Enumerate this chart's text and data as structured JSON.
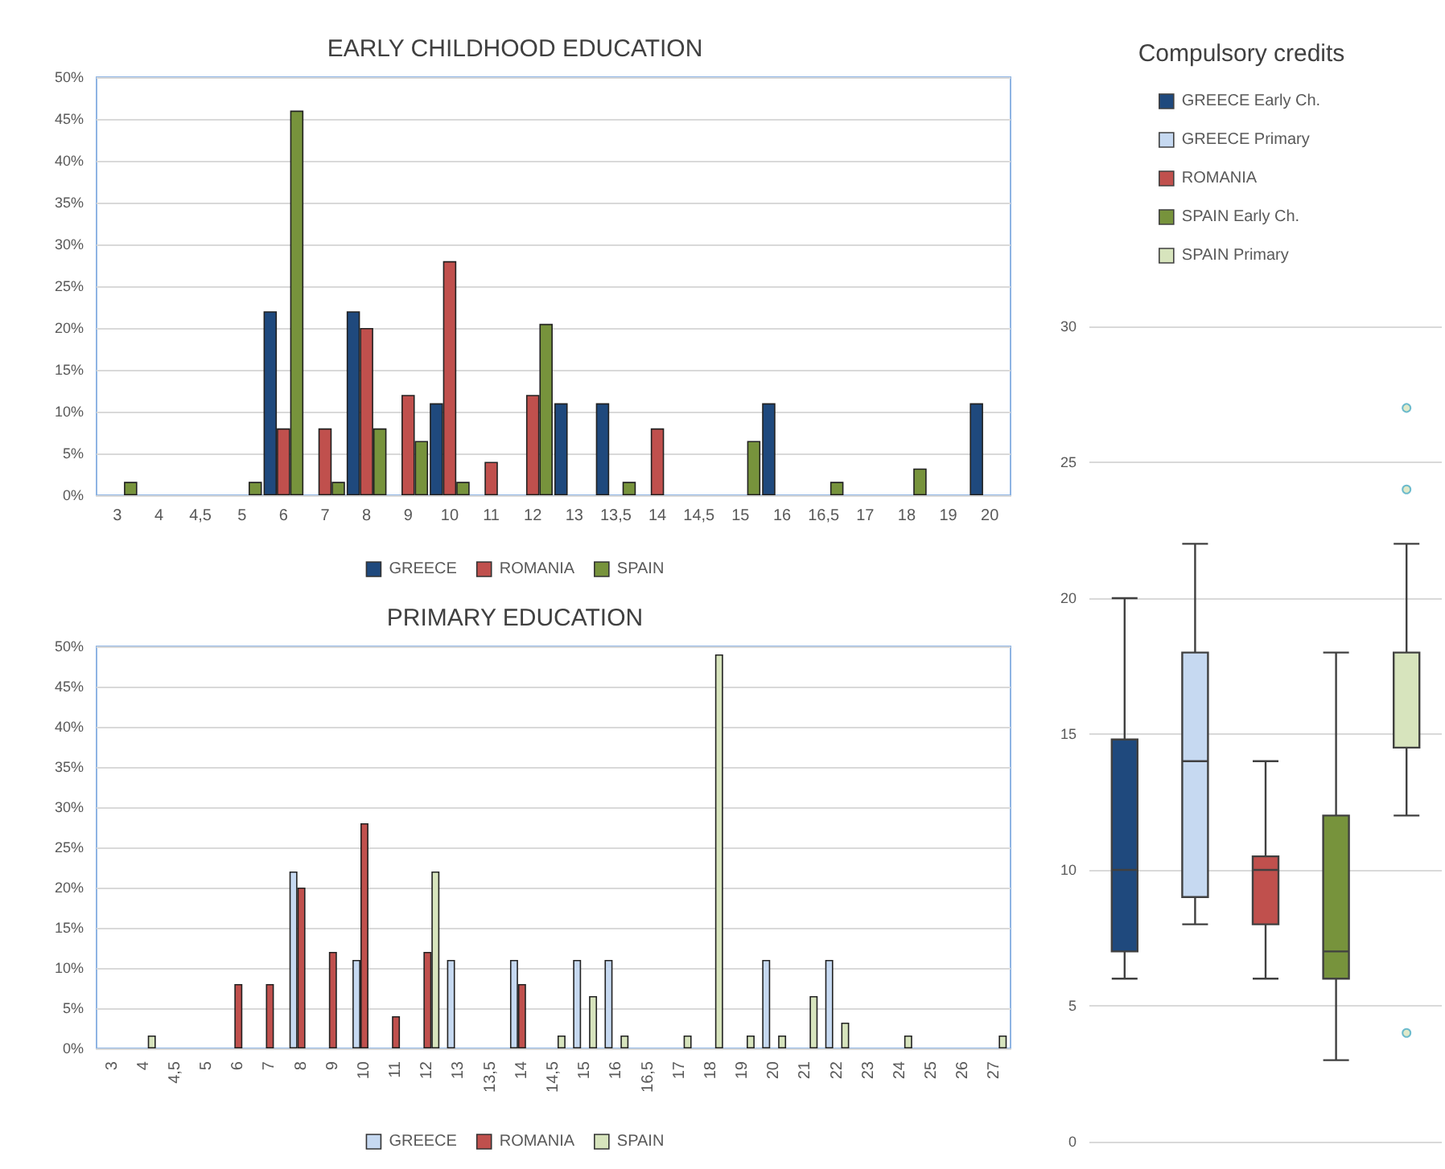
{
  "chart_data": [
    {
      "type": "bar",
      "title": "EARLY CHILDHOOD EDUCATION",
      "legend": "bottom",
      "grid": "y",
      "categories": [
        "3",
        "4",
        "4,5",
        "5",
        "6",
        "7",
        "8",
        "9",
        "10",
        "11",
        "12",
        "13",
        "13,5",
        "14",
        "14,5",
        "15",
        "16",
        "16,5",
        "17",
        "18",
        "19",
        "20"
      ],
      "ylim": [
        0,
        50
      ],
      "yticks": [
        {
          "value": 0,
          "label": "0%"
        },
        {
          "value": 5,
          "label": "5%"
        },
        {
          "value": 10,
          "label": "10%"
        },
        {
          "value": 15,
          "label": "15%"
        },
        {
          "value": 20,
          "label": "20%"
        },
        {
          "value": 25,
          "label": "25%"
        },
        {
          "value": 30,
          "label": "30%"
        },
        {
          "value": 35,
          "label": "35%"
        },
        {
          "value": 40,
          "label": "40%"
        },
        {
          "value": 45,
          "label": "45%"
        },
        {
          "value": 50,
          "label": "50%"
        }
      ],
      "series": [
        {
          "name": "GREECE",
          "color": "#1f497d",
          "values": [
            null,
            null,
            null,
            null,
            22,
            null,
            22,
            null,
            11,
            null,
            null,
            11,
            11,
            null,
            null,
            null,
            11,
            null,
            null,
            null,
            null,
            11
          ]
        },
        {
          "name": "ROMANIA",
          "color": "#c0504d",
          "values": [
            null,
            null,
            null,
            null,
            8,
            8,
            20,
            12,
            28,
            4,
            12,
            null,
            null,
            8,
            null,
            null,
            null,
            null,
            null,
            null,
            null,
            null
          ]
        },
        {
          "name": "SPAIN",
          "color": "#77933c",
          "values": [
            1.6,
            null,
            null,
            1.6,
            46,
            1.6,
            8,
            6.5,
            1.6,
            null,
            20.5,
            null,
            1.6,
            null,
            null,
            6.5,
            null,
            1.6,
            null,
            3.2,
            null,
            null
          ]
        }
      ]
    },
    {
      "type": "bar",
      "title": "PRIMARY EDUCATION",
      "legend": "bottom",
      "grid": "y",
      "categories": [
        "3",
        "4",
        "4,5",
        "5",
        "6",
        "7",
        "8",
        "9",
        "10",
        "11",
        "12",
        "13",
        "13,5",
        "14",
        "14,5",
        "15",
        "16",
        "16,5",
        "17",
        "18",
        "19",
        "20",
        "21",
        "22",
        "23",
        "24",
        "25",
        "26",
        "27"
      ],
      "ylim": [
        0,
        50
      ],
      "yticks": [
        {
          "value": 0,
          "label": "0%"
        },
        {
          "value": 5,
          "label": "5%"
        },
        {
          "value": 10,
          "label": "10%"
        },
        {
          "value": 15,
          "label": "15%"
        },
        {
          "value": 20,
          "label": "20%"
        },
        {
          "value": 25,
          "label": "25%"
        },
        {
          "value": 30,
          "label": "30%"
        },
        {
          "value": 35,
          "label": "35%"
        },
        {
          "value": 40,
          "label": "40%"
        },
        {
          "value": 45,
          "label": "45%"
        },
        {
          "value": 50,
          "label": "50%"
        }
      ],
      "series": [
        {
          "name": "GREECE",
          "color": "#c6d9f1",
          "values": [
            null,
            null,
            null,
            null,
            null,
            null,
            22,
            null,
            11,
            null,
            null,
            11,
            null,
            11,
            null,
            11,
            11,
            null,
            null,
            null,
            null,
            11,
            null,
            11,
            null,
            null,
            null,
            null,
            null
          ]
        },
        {
          "name": "ROMANIA",
          "color": "#c0504d",
          "values": [
            null,
            null,
            null,
            null,
            8,
            8,
            20,
            12,
            28,
            4,
            12,
            null,
            null,
            8,
            null,
            null,
            null,
            null,
            null,
            null,
            null,
            null,
            null,
            null,
            null,
            null,
            null,
            null,
            null
          ]
        },
        {
          "name": "SPAIN",
          "color": "#d7e4bd",
          "values": [
            null,
            1.6,
            null,
            null,
            null,
            null,
            null,
            null,
            null,
            null,
            22,
            null,
            null,
            null,
            1.6,
            6.5,
            1.6,
            null,
            1.6,
            49,
            1.6,
            1.6,
            6.5,
            3.2,
            null,
            1.6,
            null,
            null,
            1.6
          ]
        }
      ]
    },
    {
      "type": "box",
      "title": "Compulsory credits",
      "legend": "top",
      "grid": "y",
      "categories": [
        null
      ],
      "ylim": [
        0,
        30
      ],
      "yticks": [
        0,
        5,
        10,
        15,
        20,
        25,
        30
      ],
      "series": [
        {
          "name": "GREECE Early Ch.",
          "color": "#1f497d",
          "boxes": [
            {
              "low": 6,
              "q1": 7,
              "median": 10,
              "q3": 14.8,
              "high": 20
            }
          ]
        },
        {
          "name": "GREECE Primary",
          "color": "#c6d9f1",
          "boxes": [
            {
              "low": 8,
              "q1": 9,
              "median": 14,
              "q3": 18,
              "high": 22
            }
          ]
        },
        {
          "name": "ROMANIA",
          "color": "#c0504d",
          "boxes": [
            {
              "low": 6,
              "q1": 8,
              "median": 10,
              "q3": 10.5,
              "high": 14
            }
          ]
        },
        {
          "name": "SPAIN Early Ch.",
          "color": "#77933c",
          "boxes": [
            {
              "low": 3,
              "q1": 6,
              "median": 7,
              "q3": 12,
              "high": 18
            }
          ]
        },
        {
          "name": "SPAIN Primary",
          "color": "#d7e4bd",
          "boxes": [
            {
              "low": 12,
              "q1": 14.5,
              "median": 14.5,
              "q3": 18,
              "high": 22,
              "outliers": [
                4,
                24,
                27
              ]
            }
          ]
        }
      ]
    }
  ]
}
